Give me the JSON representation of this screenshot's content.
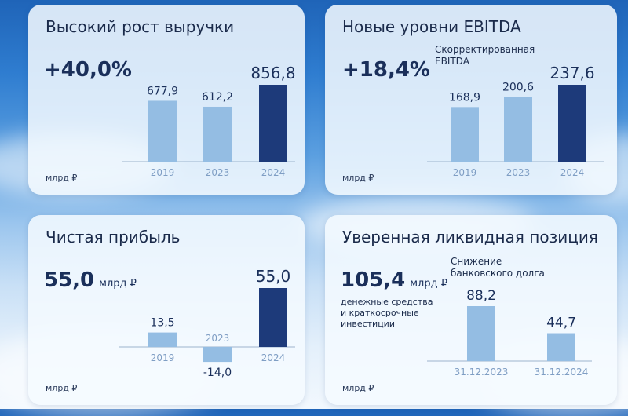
{
  "colors": {
    "light_bar": "#94bde3",
    "dark_bar": "#1d3a7a",
    "axis": "#9db4cc"
  },
  "panels": {
    "revenue": {
      "title": "Высокий рост выручки",
      "big": "+40,0%",
      "unit": "млрд ₽"
    },
    "ebitda": {
      "title": "Новые уровни EBITDA",
      "big": "+18,4%",
      "subtitle_line1": "Скорректированная",
      "subtitle_line2": "EBITDA",
      "unit": "млрд ₽"
    },
    "profit": {
      "title": "Чистая прибыль",
      "big_value": "55,0",
      "big_unit": "млрд ₽",
      "unit": "млрд ₽"
    },
    "liquidity": {
      "title": "Уверенная ликвидная позиция",
      "big_value": "105,4",
      "big_unit": "млрд ₽",
      "note_line1": "денежные средства",
      "note_line2": "и краткосрочные",
      "note_line3": "инвестиции",
      "subtitle_line1": "Снижение",
      "subtitle_line2": "банковского долга",
      "unit": "млрд ₽"
    }
  },
  "chart_data": [
    {
      "id": "revenue",
      "type": "bar",
      "categories": [
        "2019",
        "2023",
        "2024"
      ],
      "values": [
        677.9,
        612.2,
        856.8
      ],
      "labels": [
        "677,9",
        "612,2",
        "856,8"
      ],
      "ylim": [
        0,
        856.8
      ],
      "highlight": [
        false,
        false,
        true
      ]
    },
    {
      "id": "ebitda",
      "type": "bar",
      "categories": [
        "2019",
        "2023",
        "2024"
      ],
      "values": [
        168.9,
        200.6,
        237.6
      ],
      "labels": [
        "168,9",
        "200,6",
        "237,6"
      ],
      "ylim": [
        0,
        237.6
      ],
      "highlight": [
        false,
        false,
        true
      ]
    },
    {
      "id": "profit",
      "type": "bar",
      "categories": [
        "2019",
        "2023",
        "2024"
      ],
      "values": [
        13.5,
        -14.0,
        55.0
      ],
      "labels": [
        "13,5",
        "-14,0",
        "55,0"
      ],
      "ylim": [
        -14.0,
        55.0
      ],
      "highlight": [
        false,
        false,
        true
      ]
    },
    {
      "id": "liquidity",
      "type": "bar",
      "categories": [
        "31.12.2023",
        "31.12.2024"
      ],
      "values": [
        88.2,
        44.7
      ],
      "labels": [
        "88,2",
        "44,7"
      ],
      "ylim": [
        0,
        88.2
      ],
      "highlight": [
        false,
        false
      ]
    }
  ]
}
